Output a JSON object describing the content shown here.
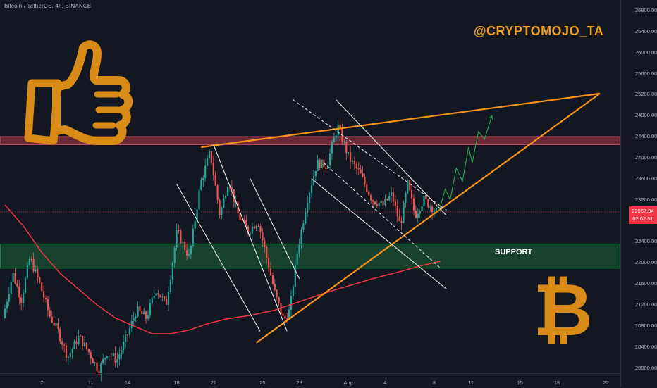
{
  "header": {
    "symbol_title": "Bitcoin / TetherUS, 4h, BINANCE"
  },
  "watermark": "@CRYPTOMOJO_TA",
  "support_label": "SUPPORT",
  "btc_symbol": "₿",
  "price_tag": {
    "price": "22967.94",
    "countdown": "02:02:51"
  },
  "colors": {
    "background": "#131722",
    "candle_up": "#26a69a",
    "candle_down": "#ef5350",
    "orange_lines": "#f7931a",
    "resistance_zone": "#b33a4a",
    "support_zone": "#1e5e3a",
    "moving_average": "#f23645",
    "projection": "#26a64a"
  },
  "chart_data": {
    "type": "candlestick",
    "symbol": "Bitcoin / TetherUS",
    "interval": "4h",
    "exchange": "BINANCE",
    "last_price": 22967.94,
    "ylim": [
      19900,
      27000
    ],
    "y_ticks": [
      20000,
      20400,
      20800,
      21200,
      21600,
      22000,
      22400,
      22800,
      23200,
      23600,
      24000,
      24400,
      24800,
      25200,
      25600,
      26000,
      26400,
      26800
    ],
    "x_tick_labels": [
      {
        "day": 3,
        "label": "7"
      },
      {
        "day": 7,
        "label": "11"
      },
      {
        "day": 10,
        "label": "14"
      },
      {
        "day": 14,
        "label": "18"
      },
      {
        "day": 17,
        "label": "21"
      },
      {
        "day": 21,
        "label": "25"
      },
      {
        "day": 24,
        "label": "28"
      },
      {
        "day": 28,
        "label": "Aug"
      },
      {
        "day": 31,
        "label": "4"
      },
      {
        "day": 35,
        "label": "8"
      },
      {
        "day": 38,
        "label": "11"
      },
      {
        "day": 42,
        "label": "15"
      },
      {
        "day": 45,
        "label": "18"
      },
      {
        "day": 49,
        "label": "22"
      }
    ],
    "price_path": [
      [
        0,
        20950
      ],
      [
        0.8,
        21800
      ],
      [
        1.5,
        21300
      ],
      [
        2.2,
        22100
      ],
      [
        3,
        21600
      ],
      [
        3.8,
        21000
      ],
      [
        4.5,
        20700
      ],
      [
        5.3,
        20200
      ],
      [
        6.2,
        20600
      ],
      [
        7,
        20300
      ],
      [
        7.8,
        19950
      ],
      [
        8.5,
        20300
      ],
      [
        9.3,
        20150
      ],
      [
        10.1,
        20600
      ],
      [
        10.9,
        21100
      ],
      [
        11.7,
        20950
      ],
      [
        12.5,
        21500
      ],
      [
        13.3,
        21200
      ],
      [
        14.2,
        22600
      ],
      [
        15.2,
        22100
      ],
      [
        16.1,
        23500
      ],
      [
        16.9,
        24100
      ],
      [
        17.7,
        22900
      ],
      [
        18.4,
        23600
      ],
      [
        19.2,
        22900
      ],
      [
        20,
        22600
      ],
      [
        20.8,
        22800
      ],
      [
        21.5,
        22100
      ],
      [
        22.2,
        21400
      ],
      [
        22.9,
        20900
      ],
      [
        23.4,
        21100
      ],
      [
        24,
        22200
      ],
      [
        24.8,
        23200
      ],
      [
        25.6,
        23900
      ],
      [
        26.4,
        23850
      ],
      [
        27.3,
        24600
      ],
      [
        28.2,
        24000
      ],
      [
        29.1,
        23700
      ],
      [
        30.1,
        23200
      ],
      [
        31,
        23100
      ],
      [
        31.7,
        23300
      ],
      [
        32.4,
        22700
      ],
      [
        33,
        23500
      ],
      [
        33.6,
        22900
      ],
      [
        34.3,
        23200
      ],
      [
        35,
        23050
      ],
      [
        35.4,
        22968
      ]
    ],
    "moving_average": [
      [
        0,
        23100
      ],
      [
        1.5,
        22700
      ],
      [
        3,
        22200
      ],
      [
        4.5,
        21800
      ],
      [
        6,
        21500
      ],
      [
        7.5,
        21200
      ],
      [
        9,
        20950
      ],
      [
        10.5,
        20800
      ],
      [
        12,
        20650
      ],
      [
        13.5,
        20650
      ],
      [
        15,
        20720
      ],
      [
        16.5,
        20840
      ],
      [
        18,
        20930
      ],
      [
        20,
        21000
      ],
      [
        22,
        21100
      ],
      [
        24,
        21260
      ],
      [
        26,
        21420
      ],
      [
        28,
        21560
      ],
      [
        30,
        21700
      ],
      [
        32,
        21820
      ],
      [
        34,
        21950
      ],
      [
        35.5,
        22030
      ]
    ],
    "zones": [
      {
        "name": "resistance",
        "from": 24250,
        "to": 24400
      },
      {
        "name": "support",
        "from": 21900,
        "to": 22360
      }
    ],
    "trendlines": [
      {
        "style": "orange",
        "from": [
          16,
          24200
        ],
        "to": [
          48.5,
          25220
        ]
      },
      {
        "style": "orange",
        "from": [
          20.5,
          20480
        ],
        "to": [
          48.5,
          25220
        ]
      },
      {
        "style": "white",
        "from": [
          17,
          24250
        ],
        "to": [
          23,
          20700
        ]
      },
      {
        "style": "white",
        "from": [
          14,
          23500
        ],
        "to": [
          20.8,
          20700
        ]
      },
      {
        "style": "white",
        "from": [
          20,
          23600
        ],
        "to": [
          24,
          21700
        ]
      },
      {
        "style": "white",
        "from": [
          27,
          25100
        ],
        "to": [
          36,
          22900
        ]
      },
      {
        "style": "white",
        "from": [
          25,
          23600
        ],
        "to": [
          36,
          21500
        ]
      },
      {
        "style": "white-dashed",
        "from": [
          23.5,
          25100
        ],
        "to": [
          36,
          23000
        ]
      },
      {
        "style": "white-dashed",
        "from": [
          26,
          23900
        ],
        "to": [
          35.5,
          21900
        ]
      }
    ],
    "projection": [
      [
        35.4,
        23000
      ],
      [
        35.9,
        23400
      ],
      [
        36.3,
        23200
      ],
      [
        36.8,
        23800
      ],
      [
        37.3,
        23550
      ],
      [
        37.8,
        24200
      ],
      [
        38.1,
        23900
      ],
      [
        38.6,
        24500
      ],
      [
        39.1,
        24350
      ],
      [
        39.7,
        24800
      ]
    ],
    "grid": false,
    "legend": "none"
  }
}
